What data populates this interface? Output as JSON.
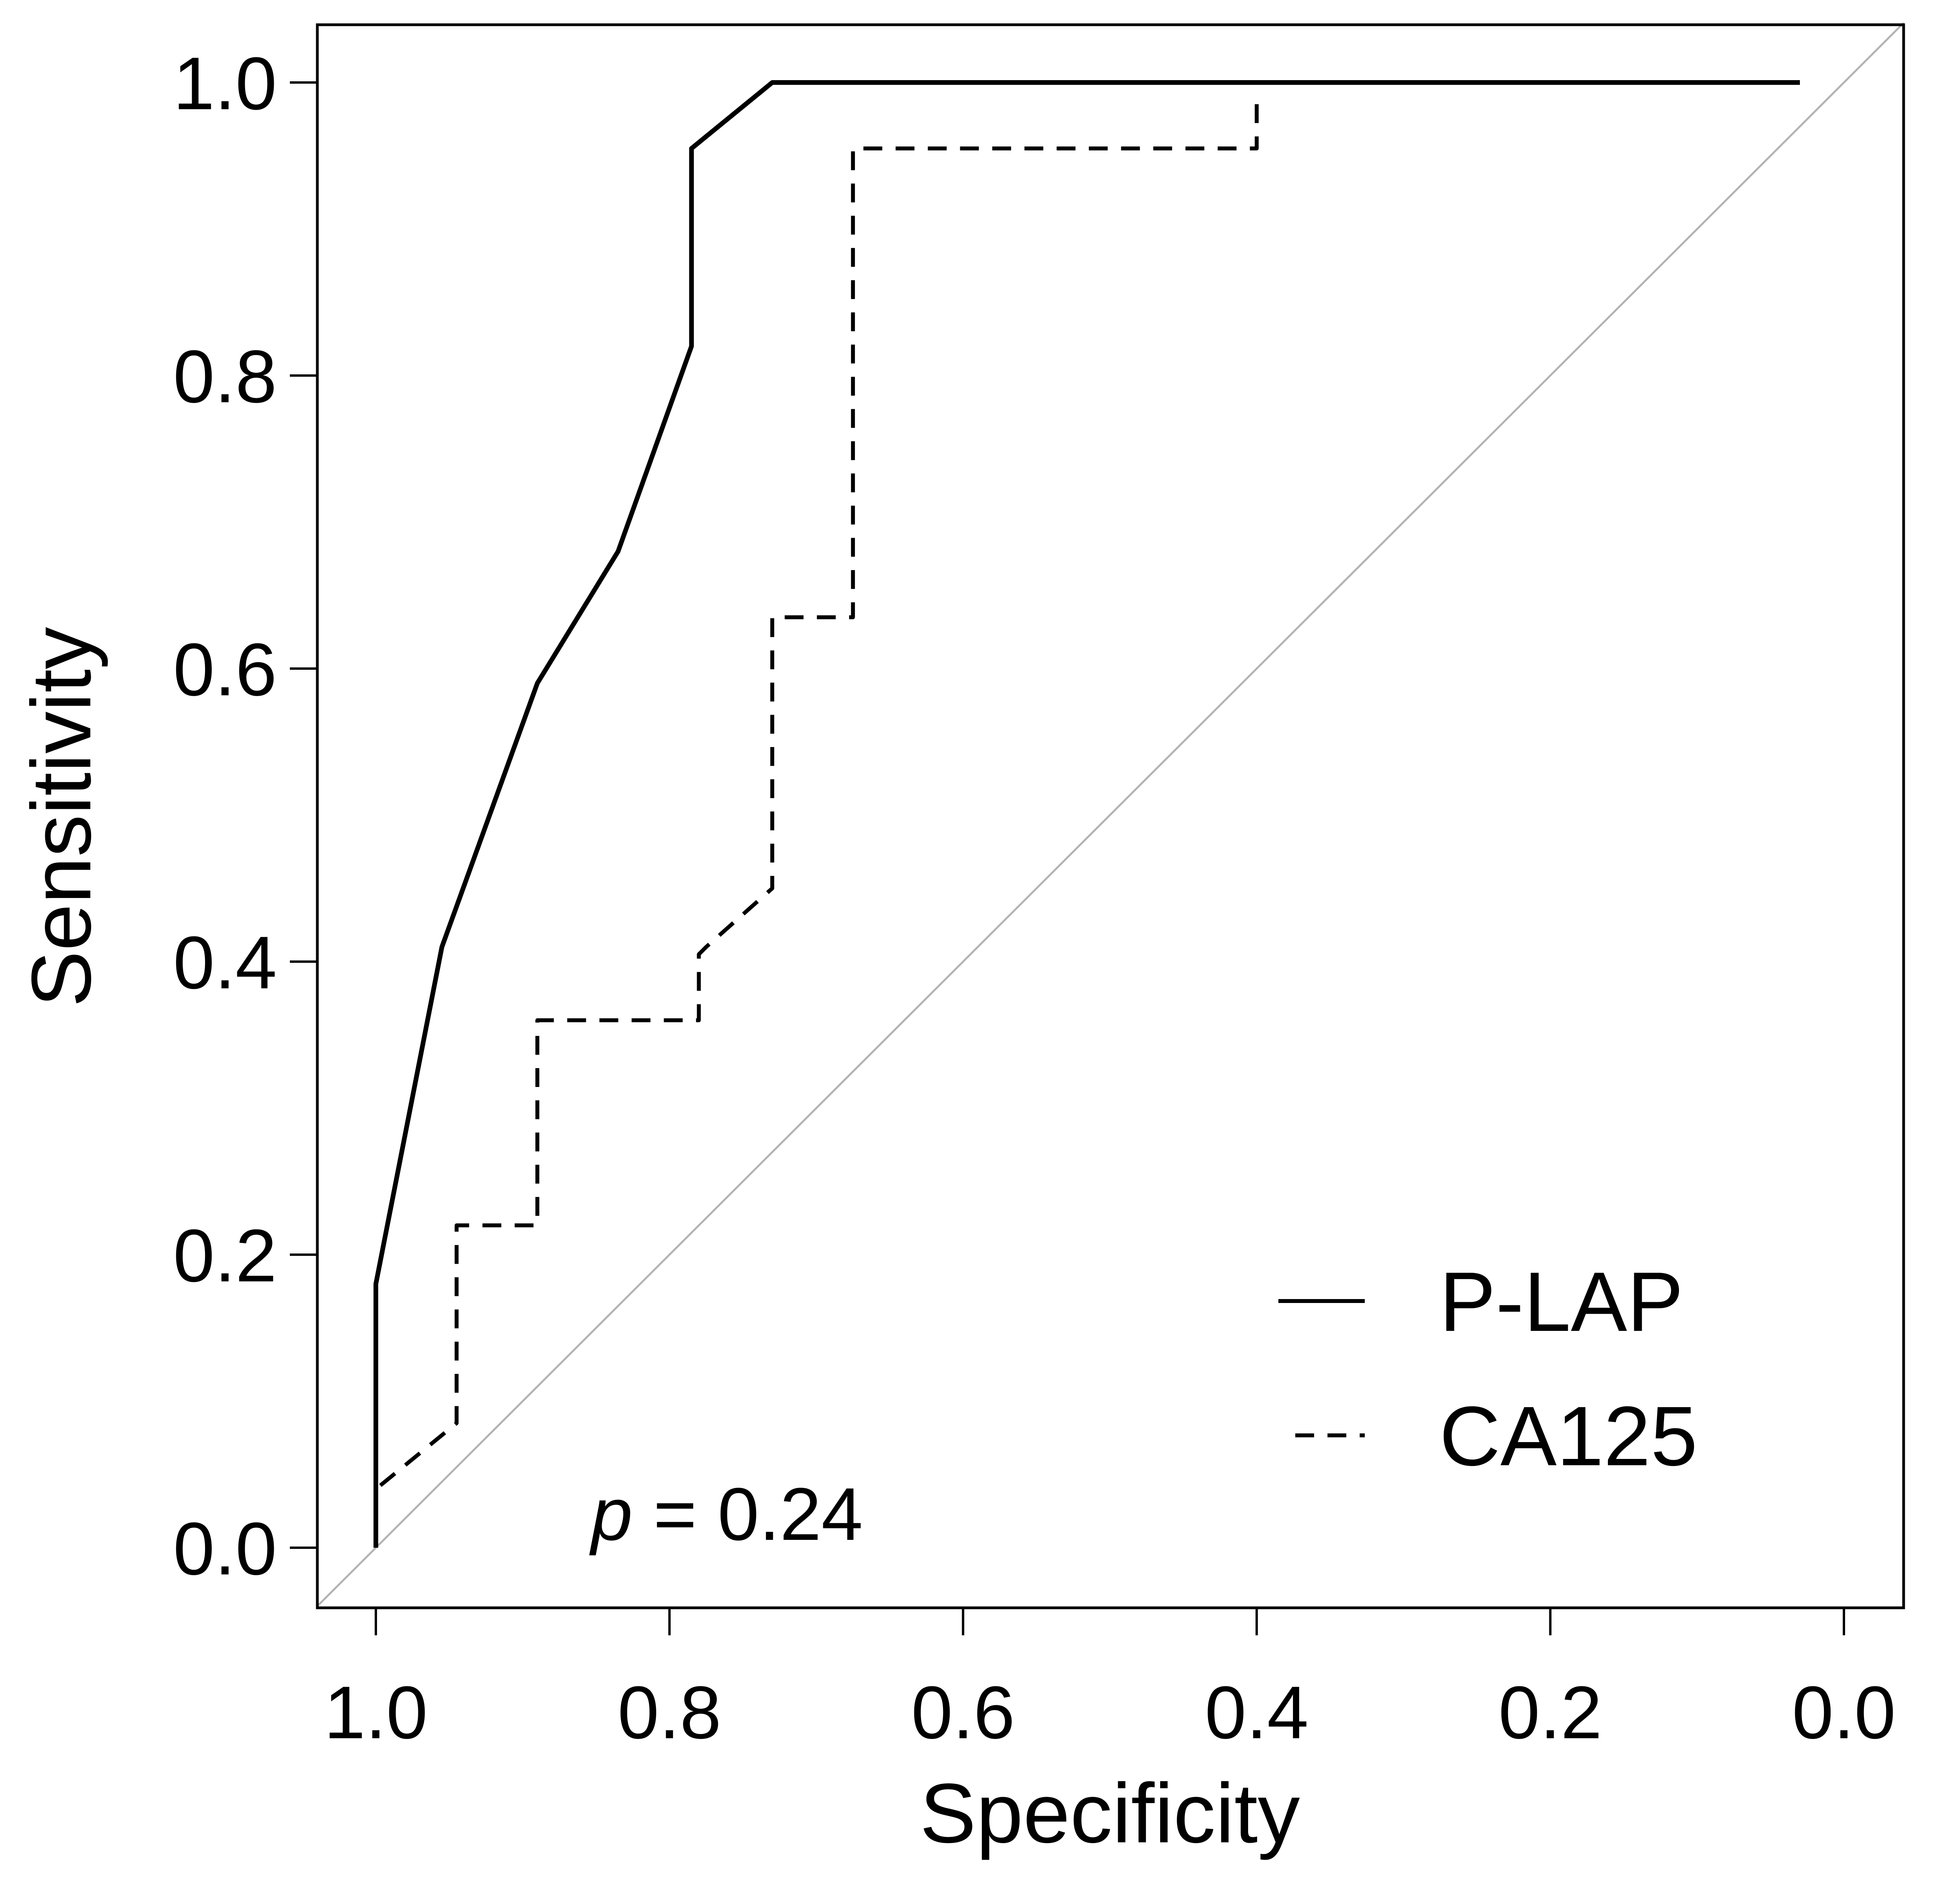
{
  "chart_data": {
    "type": "line",
    "title": "",
    "xlabel": "Specificity",
    "ylabel": "Sensitivity",
    "xlim": [
      1.0,
      0.0
    ],
    "ylim": [
      0.0,
      1.0
    ],
    "x_ticks": [
      "1.0",
      "0.8",
      "0.6",
      "0.4",
      "0.2",
      "0.0"
    ],
    "y_ticks": [
      "0.0",
      "0.2",
      "0.4",
      "0.6",
      "0.8",
      "1.0"
    ],
    "grid": false,
    "legend_position": "bottom-right",
    "reference_line": "diagonal",
    "annotation": {
      "italic_part": "p",
      "rest": " = 0.24"
    },
    "series": [
      {
        "name": "P-LAP",
        "style": "solid",
        "color": "#000000",
        "x": [
          1.0,
          1.0,
          0.955,
          0.89,
          0.835,
          0.785,
          0.785,
          0.73,
          0.5,
          0.3,
          0.03
        ],
        "y": [
          0.0,
          0.18,
          0.41,
          0.59,
          0.68,
          0.82,
          0.955,
          1.0,
          1.0,
          1.0,
          1.0
        ]
      },
      {
        "name": "CA125",
        "style": "dashed",
        "color": "#000000",
        "x": [
          1.0,
          1.0,
          0.945,
          0.945,
          0.89,
          0.89,
          0.78,
          0.78,
          0.775,
          0.73,
          0.73,
          0.675,
          0.675,
          0.4,
          0.4
        ],
        "y": [
          0.0,
          0.04,
          0.085,
          0.22,
          0.22,
          0.36,
          0.36,
          0.405,
          0.41,
          0.45,
          0.635,
          0.635,
          0.955,
          0.955,
          0.99
        ]
      }
    ]
  }
}
